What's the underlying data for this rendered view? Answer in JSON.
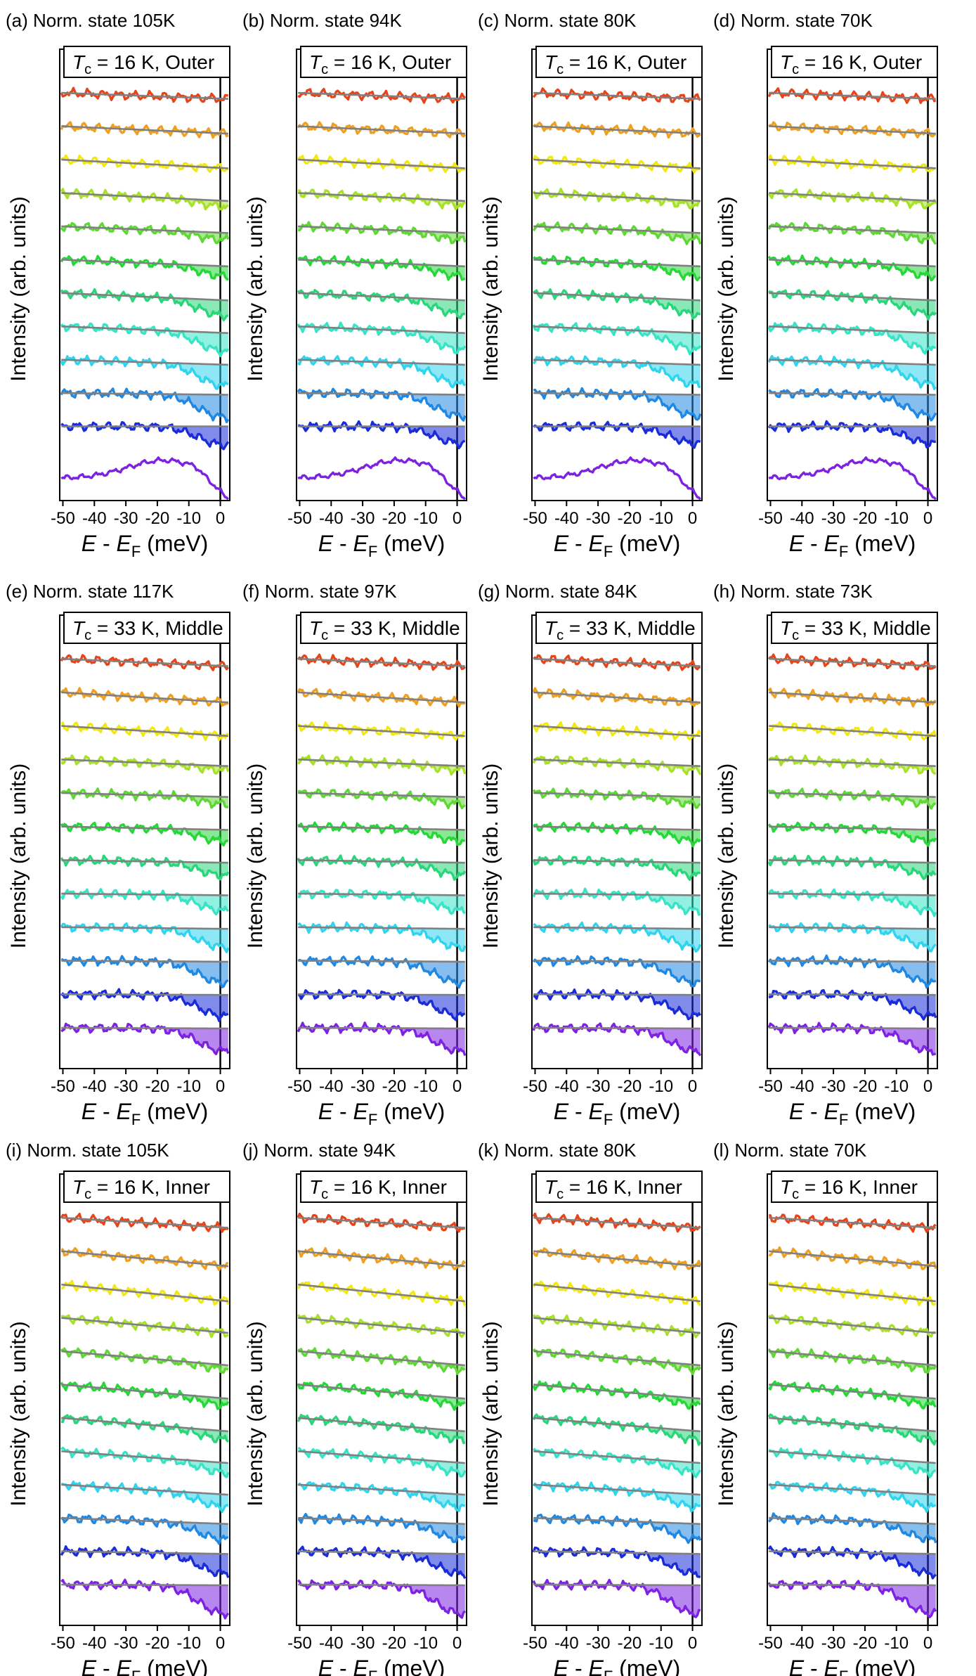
{
  "figure": {
    "xaxis_label": "E - E",
    "xaxis_label_sub": "F",
    "xaxis_unit": "(meV)",
    "yaxis_label": "Intensity (arb. units)",
    "tc_symbol": "T",
    "tc_sub": "c"
  },
  "chart_data": [
    {
      "type": "line",
      "panel": "a",
      "title": "(a)  Norm. state 105K",
      "tc_value": " = 16 K, Outer",
      "xlabel": "E - EF (meV)",
      "ylabel": "Intensity (arb. units)",
      "xlim": [
        -51,
        3
      ],
      "xticks": [
        -50,
        -40,
        -30,
        -20,
        -10,
        0
      ],
      "tick_labels": [
        "-50",
        "-40",
        "-30",
        "-20",
        "-10",
        "0"
      ],
      "ef_line_x": 0,
      "n_spectra": 12,
      "fit_slope": [
        0.18,
        0.22,
        0.26,
        0.24,
        0.2,
        0.2,
        0.22,
        0.2,
        0.15,
        0.05,
        0.0,
        0.0
      ],
      "gap_depth": [
        0,
        0,
        0,
        8,
        10,
        14,
        22,
        26,
        30,
        32,
        26,
        0
      ],
      "kink": [
        0,
        0,
        0,
        0,
        0,
        0,
        0,
        0,
        0,
        0,
        0,
        1
      ]
    },
    {
      "type": "line",
      "panel": "b",
      "title": "(b) Norm. state 94K",
      "tc_value": " = 16 K, Outer",
      "xlabel": "E - EF (meV)",
      "ylabel": "Intensity (arb. units)",
      "xlim": [
        -51,
        3
      ],
      "xticks": [
        -50,
        -40,
        -30,
        -20,
        -10,
        0
      ],
      "tick_labels": [
        "-50",
        "-40",
        "-30",
        "-20",
        "-10",
        "0"
      ],
      "ef_line_x": 0,
      "n_spectra": 12,
      "fit_slope": [
        0.18,
        0.22,
        0.26,
        0.24,
        0.2,
        0.2,
        0.22,
        0.2,
        0.15,
        0.05,
        0.0,
        0.0
      ],
      "gap_depth": [
        0,
        0,
        0,
        6,
        10,
        14,
        20,
        24,
        28,
        30,
        24,
        0
      ],
      "kink": [
        0,
        0,
        0,
        0,
        0,
        0,
        0,
        0,
        0,
        0,
        0,
        1
      ]
    },
    {
      "type": "line",
      "panel": "c",
      "title": "(c) Norm. state 80K",
      "tc_value": " = 16 K, Outer",
      "xlabel": "E - EF (meV)",
      "ylabel": "Intensity (arb. units)",
      "xlim": [
        -51,
        3
      ],
      "xticks": [
        -50,
        -40,
        -30,
        -20,
        -10,
        0
      ],
      "tick_labels": [
        "-50",
        "-40",
        "-30",
        "-20",
        "-10",
        "0"
      ],
      "ef_line_x": 0,
      "n_spectra": 12,
      "fit_slope": [
        0.18,
        0.22,
        0.26,
        0.24,
        0.2,
        0.2,
        0.22,
        0.2,
        0.15,
        0.05,
        0.0,
        0.0
      ],
      "gap_depth": [
        0,
        0,
        0,
        6,
        10,
        14,
        20,
        24,
        28,
        30,
        24,
        0
      ],
      "kink": [
        0,
        0,
        0,
        0,
        0,
        0,
        0,
        0,
        0,
        0,
        0,
        1
      ]
    },
    {
      "type": "line",
      "panel": "d",
      "title": "(d) Norm. state 70K",
      "tc_value": " = 16 K, Outer",
      "xlabel": "E - EF (meV)",
      "ylabel": "Intensity (arb. units)",
      "xlim": [
        -51,
        3
      ],
      "xticks": [
        -50,
        -40,
        -30,
        -20,
        -10,
        0
      ],
      "tick_labels": [
        "-50",
        "-40",
        "-30",
        "-20",
        "-10",
        "0"
      ],
      "ef_line_x": 0,
      "n_spectra": 12,
      "fit_slope": [
        0.18,
        0.22,
        0.26,
        0.24,
        0.2,
        0.2,
        0.22,
        0.2,
        0.15,
        0.05,
        0.0,
        0.0
      ],
      "gap_depth": [
        0,
        0,
        0,
        6,
        10,
        14,
        20,
        24,
        28,
        30,
        24,
        0
      ],
      "kink": [
        0,
        0,
        0,
        0,
        0,
        0,
        0,
        0,
        0,
        0,
        0,
        1
      ]
    },
    {
      "type": "line",
      "panel": "e",
      "title": "(e) Norm. state 117K",
      "tc_value": " = 33 K, Middle",
      "xlabel": "E - EF (meV)",
      "ylabel": "Intensity (arb. units)",
      "xlim": [
        -51,
        3
      ],
      "xticks": [
        -50,
        -40,
        -30,
        -20,
        -10,
        0
      ],
      "tick_labels": [
        "-50",
        "-40",
        "-30",
        "-20",
        "-10",
        "0"
      ],
      "ef_line_x": 0,
      "n_spectra": 12,
      "fit_slope": [
        0.22,
        0.3,
        0.3,
        0.2,
        0.12,
        0.1,
        0.08,
        0.05,
        0.05,
        0.03,
        0.02,
        0.02
      ],
      "gap_depth": [
        0,
        0,
        0,
        6,
        10,
        16,
        18,
        22,
        26,
        30,
        30,
        32
      ],
      "kink": [
        0,
        0,
        0,
        0,
        0,
        0,
        0,
        0,
        0,
        0,
        0,
        0
      ]
    },
    {
      "type": "line",
      "panel": "f",
      "title": "(f) Norm. state 97K",
      "tc_value": " = 33 K, Middle",
      "xlabel": "E - EF (meV)",
      "ylabel": "Intensity (arb. units)",
      "xlim": [
        -51,
        3
      ],
      "xticks": [
        -50,
        -40,
        -30,
        -20,
        -10,
        0
      ],
      "tick_labels": [
        "-50",
        "-40",
        "-30",
        "-20",
        "-10",
        "0"
      ],
      "ef_line_x": 0,
      "n_spectra": 12,
      "fit_slope": [
        0.22,
        0.3,
        0.3,
        0.2,
        0.12,
        0.1,
        0.08,
        0.05,
        0.05,
        0.03,
        0.02,
        0.02
      ],
      "gap_depth": [
        0,
        0,
        0,
        6,
        10,
        16,
        18,
        22,
        26,
        30,
        30,
        32
      ],
      "kink": [
        0,
        0,
        0,
        0,
        0,
        0,
        0,
        0,
        0,
        0,
        0,
        0
      ]
    },
    {
      "type": "line",
      "panel": "g",
      "title": "(g) Norm. state 84K",
      "tc_value": " = 33 K, Middle",
      "xlabel": "E - EF (meV)",
      "ylabel": "Intensity (arb. units)",
      "xlim": [
        -51,
        3
      ],
      "xticks": [
        -50,
        -40,
        -30,
        -20,
        -10,
        0
      ],
      "tick_labels": [
        "-50",
        "-40",
        "-30",
        "-20",
        "-10",
        "0"
      ],
      "ef_line_x": 0,
      "n_spectra": 12,
      "fit_slope": [
        0.22,
        0.3,
        0.3,
        0.2,
        0.12,
        0.1,
        0.08,
        0.05,
        0.05,
        0.03,
        0.02,
        0.02
      ],
      "gap_depth": [
        0,
        0,
        0,
        6,
        10,
        16,
        18,
        22,
        26,
        30,
        30,
        32
      ],
      "kink": [
        0,
        0,
        0,
        0,
        0,
        0,
        0,
        0,
        0,
        0,
        0,
        0
      ]
    },
    {
      "type": "line",
      "panel": "h",
      "title": "(h) Norm. state 73K",
      "tc_value": " = 33 K, Middle",
      "xlabel": "E - EF (meV)",
      "ylabel": "Intensity (arb. units)",
      "xlim": [
        -51,
        3
      ],
      "xticks": [
        -50,
        -40,
        -30,
        -20,
        -10,
        0
      ],
      "tick_labels": [
        "-50",
        "-40",
        "-30",
        "-20",
        "-10",
        "0"
      ],
      "ef_line_x": 0,
      "n_spectra": 12,
      "fit_slope": [
        0.22,
        0.3,
        0.3,
        0.2,
        0.12,
        0.1,
        0.08,
        0.05,
        0.05,
        0.03,
        0.02,
        0.02
      ],
      "gap_depth": [
        0,
        0,
        0,
        6,
        10,
        16,
        18,
        22,
        26,
        30,
        30,
        32
      ],
      "kink": [
        0,
        0,
        0,
        0,
        0,
        0,
        0,
        0,
        0,
        0,
        0,
        0
      ]
    },
    {
      "type": "line",
      "panel": "i",
      "title": "(i) Norm. state 105K",
      "tc_value": " = 16 K, Inner",
      "xlabel": "E - EF (meV)",
      "ylabel": "Intensity (arb. units)",
      "xlim": [
        -51,
        3
      ],
      "xticks": [
        -50,
        -40,
        -30,
        -20,
        -10,
        0
      ],
      "tick_labels": [
        "-50",
        "-40",
        "-30",
        "-20",
        "-10",
        "0"
      ],
      "ef_line_x": 0,
      "n_spectra": 12,
      "fit_slope": [
        0.3,
        0.45,
        0.5,
        0.45,
        0.42,
        0.42,
        0.4,
        0.35,
        0.3,
        0.18,
        0.08,
        0.02
      ],
      "gap_depth": [
        0,
        0,
        0,
        0,
        6,
        10,
        12,
        14,
        18,
        22,
        28,
        40
      ],
      "kink": [
        0,
        0,
        0,
        0,
        0,
        0,
        0,
        0,
        0,
        0,
        0,
        0
      ]
    },
    {
      "type": "line",
      "panel": "j",
      "title": "(j) Norm. state 94K",
      "tc_value": " = 16 K, Inner",
      "xlabel": "E - EF (meV)",
      "ylabel": "Intensity (arb. units)",
      "xlim": [
        -51,
        3
      ],
      "xticks": [
        -50,
        -40,
        -30,
        -20,
        -10,
        0
      ],
      "tick_labels": [
        "-50",
        "-40",
        "-30",
        "-20",
        "-10",
        "0"
      ],
      "ef_line_x": 0,
      "n_spectra": 12,
      "fit_slope": [
        0.3,
        0.45,
        0.5,
        0.45,
        0.42,
        0.42,
        0.4,
        0.35,
        0.3,
        0.18,
        0.08,
        0.02
      ],
      "gap_depth": [
        0,
        0,
        0,
        0,
        6,
        10,
        12,
        14,
        18,
        22,
        28,
        40
      ],
      "kink": [
        0,
        0,
        0,
        0,
        0,
        0,
        0,
        0,
        0,
        0,
        0,
        0
      ]
    },
    {
      "type": "line",
      "panel": "k",
      "title": "(k) Norm. state 80K",
      "tc_value": " = 16 K, Inner",
      "xlabel": "E - EF (meV)",
      "ylabel": "Intensity (arb. units)",
      "xlim": [
        -51,
        3
      ],
      "xticks": [
        -50,
        -40,
        -30,
        -20,
        -10,
        0
      ],
      "tick_labels": [
        "-50",
        "-40",
        "-30",
        "-20",
        "-10",
        "0"
      ],
      "ef_line_x": 0,
      "n_spectra": 12,
      "fit_slope": [
        0.3,
        0.45,
        0.5,
        0.45,
        0.42,
        0.42,
        0.4,
        0.35,
        0.3,
        0.18,
        0.08,
        0.02
      ],
      "gap_depth": [
        0,
        0,
        0,
        0,
        6,
        10,
        12,
        14,
        18,
        22,
        28,
        40
      ],
      "kink": [
        0,
        0,
        0,
        0,
        0,
        0,
        0,
        0,
        0,
        0,
        0,
        0
      ]
    },
    {
      "type": "line",
      "panel": "l",
      "title": "(l) Norm. state 70K",
      "tc_value": " = 16 K, Inner",
      "xlabel": "E - EF (meV)",
      "ylabel": "Intensity (arb. units)",
      "xlim": [
        -51,
        3
      ],
      "xticks": [
        -50,
        -40,
        -30,
        -20,
        -10,
        0
      ],
      "tick_labels": [
        "-50",
        "-40",
        "-30",
        "-20",
        "-10",
        "0"
      ],
      "ef_line_x": 0,
      "n_spectra": 12,
      "fit_slope": [
        0.3,
        0.45,
        0.5,
        0.45,
        0.42,
        0.42,
        0.4,
        0.35,
        0.3,
        0.18,
        0.08,
        0.02
      ],
      "gap_depth": [
        0,
        0,
        0,
        0,
        6,
        10,
        12,
        14,
        18,
        22,
        28,
        40
      ],
      "kink": [
        0,
        0,
        0,
        0,
        0,
        0,
        0,
        0,
        0,
        0,
        0,
        0
      ]
    }
  ],
  "colors": [
    "#e8441a",
    "#f0a020",
    "#f2e812",
    "#a6e22a",
    "#5fd835",
    "#25d838",
    "#2ad67a",
    "#37e4c6",
    "#30d4ec",
    "#2088e2",
    "#1a2cd8",
    "#7c22e0"
  ]
}
